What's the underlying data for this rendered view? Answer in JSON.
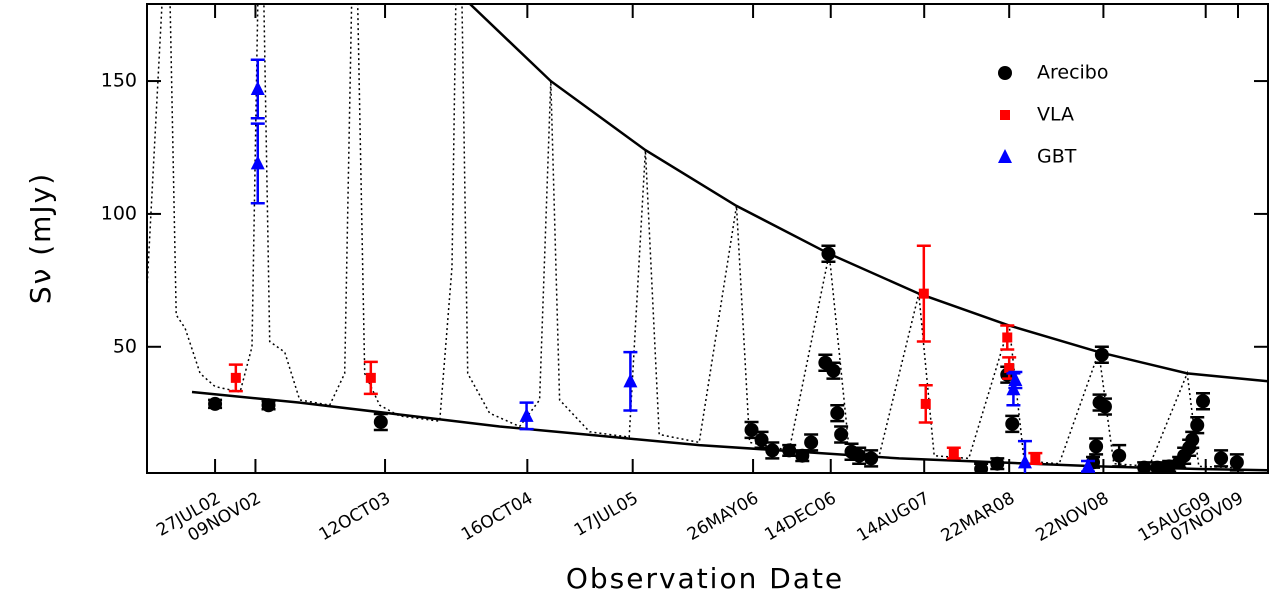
{
  "chart_data": {
    "type": "scatter",
    "xlabel": "Observation Date",
    "ylabel": "Sν (mJy)",
    "xlim": [
      "2002-01-31",
      "2010-01-24"
    ],
    "ylim": [
      2.5,
      179
    ],
    "yticks": [
      50,
      100,
      150
    ],
    "xticks": [
      {
        "value": "2002-07-27",
        "label": "27JUL02"
      },
      {
        "value": "2002-11-09",
        "label": "09NOV02"
      },
      {
        "value": "2003-10-12",
        "label": "12OCT03"
      },
      {
        "value": "2004-10-16",
        "label": "16OCT04"
      },
      {
        "value": "2005-07-17",
        "label": "17JUL05"
      },
      {
        "value": "2006-05-26",
        "label": "26MAY06"
      },
      {
        "value": "2006-12-14",
        "label": "14DEC06"
      },
      {
        "value": "2007-08-14",
        "label": "14AUG07"
      },
      {
        "value": "2008-03-22",
        "label": "22MAR08"
      },
      {
        "value": "2008-11-22",
        "label": "22NOV08"
      },
      {
        "value": "2009-08-15",
        "label": "15AUG09"
      },
      {
        "value": "2009-11-07",
        "label": "07NOV09"
      }
    ],
    "legend": "upper right",
    "series": [
      {
        "name": "Arecibo",
        "color": "#000000",
        "marker": "circle",
        "x": [
          "2002-07-27",
          "2002-12-13",
          "2003-10-01",
          "2006-05-22",
          "2006-06-17",
          "2006-07-15",
          "2006-08-28",
          "2006-10-01",
          "2006-10-24",
          "2006-11-30",
          "2006-12-08",
          "2006-12-21",
          "2006-12-31",
          "2007-01-10",
          "2007-02-06",
          "2007-02-26",
          "2007-03-29",
          "2008-01-09",
          "2008-02-20",
          "2008-03-17",
          "2008-03-30",
          "2008-10-26",
          "2008-11-03",
          "2008-11-12",
          "2008-11-18",
          "2008-11-26",
          "2009-01-02",
          "2009-03-08",
          "2009-04-11",
          "2009-05-12",
          "2009-06-07",
          "2009-06-20",
          "2009-07-03",
          "2009-07-11",
          "2009-07-24",
          "2009-08-08",
          "2009-09-24",
          "2009-11-04"
        ],
        "values": [
          28.5,
          28,
          21.7,
          18.7,
          15,
          11,
          11,
          9,
          14,
          44,
          85,
          41,
          25,
          17,
          10.5,
          9,
          8,
          4,
          6,
          39.5,
          21,
          6.5,
          12.5,
          29,
          47,
          27.5,
          9,
          4.5,
          4.5,
          5,
          6.5,
          9,
          12,
          15,
          20.5,
          29.5,
          8,
          6.5
        ],
        "errors": [
          1.5,
          1.5,
          3,
          3,
          3,
          3,
          2,
          2,
          3,
          3,
          3,
          3,
          3,
          3,
          3,
          3,
          3,
          2,
          2,
          3,
          3,
          2,
          3,
          3,
          3,
          3,
          4,
          2,
          2,
          2,
          2,
          3,
          3,
          3,
          3,
          3,
          3,
          3
        ]
      },
      {
        "name": "VLA",
        "color": "#ff0000",
        "marker": "square",
        "x": [
          "2002-09-19",
          "2003-09-05",
          "2007-08-13",
          "2007-08-18",
          "2007-10-30",
          "2008-03-17",
          "2008-03-22",
          "2008-05-29"
        ],
        "values": [
          38.3,
          38.3,
          70,
          28.5,
          10,
          53.5,
          42,
          8
        ],
        "errors": [
          5,
          6,
          18,
          7,
          2,
          4.5,
          4,
          2
        ]
      },
      {
        "name": "GBT",
        "color": "#0000ff",
        "marker": "triangle",
        "x": [
          "2002-11-15",
          "2002-11-15",
          "2004-10-14",
          "2005-07-11",
          "2008-04-07",
          "2008-04-02",
          "2008-05-02",
          "2008-10-13"
        ],
        "values": [
          147,
          119,
          24,
          37,
          37.5,
          34,
          6.5,
          5
        ],
        "errors": [
          11,
          15,
          5,
          11,
          3,
          6,
          8,
          2
        ]
      }
    ],
    "curves": [
      {
        "style": "solid",
        "x": [
          "2004-05-20",
          "2004-12-16",
          "2005-08-19",
          "2006-04-13",
          "2006-12-10",
          "2007-07-31",
          "2008-03-22",
          "2008-11-10",
          "2009-06-28",
          "2010-01-24"
        ],
        "values": [
          179,
          150,
          124,
          103,
          85,
          70,
          58,
          48,
          40,
          37
        ]
      },
      {
        "style": "solid",
        "x": [
          "2002-05-28",
          "2003-03-04",
          "2003-11-18",
          "2004-08-05",
          "2005-04-22",
          "2006-01-06",
          "2006-09-23",
          "2007-06-10",
          "2008-02-25",
          "2008-11-10",
          "2009-07-28",
          "2010-01-24"
        ],
        "values": [
          33,
          29,
          24.5,
          20,
          16.5,
          13,
          10.5,
          8,
          6.5,
          5,
          4,
          3.5
        ]
      },
      {
        "style": "dotted",
        "x": [
          "2002-01-31",
          "2002-03-11",
          "2002-04-01",
          "2002-04-17",
          "2002-05-10",
          "2002-06-18",
          "2002-07-27",
          "2002-09-30",
          "2002-10-31",
          "2002-11-15",
          "2002-12-01",
          "2002-12-16",
          "2003-01-24",
          "2003-03-04",
          "2003-05-21",
          "2003-06-29",
          "2003-07-17",
          "2003-08-02",
          "2003-08-20",
          "2003-09-28",
          "2003-11-18",
          "2004-03-02",
          "2004-04-03",
          "2004-04-13",
          "2004-04-29",
          "2004-05-14",
          "2004-07-10",
          "2004-09-26",
          "2004-11-17",
          "2004-12-16",
          "2005-01-08",
          "2005-03-27",
          "2005-07-08",
          "2005-08-19",
          "2005-09-24",
          "2006-01-06",
          "2006-04-13",
          "2006-05-17",
          "2006-08-28",
          "2006-12-10",
          "2007-01-31",
          "2007-04-19",
          "2007-07-31",
          "2007-09-09",
          "2007-12-08",
          "2008-03-22",
          "2008-04-30",
          "2008-07-30",
          "2008-11-10",
          "2008-12-19",
          "2009-03-21",
          "2009-06-28",
          "2009-07-28",
          "2009-11-09"
        ],
        "values": [
          72,
          179,
          179,
          62,
          57,
          40,
          35,
          33,
          50,
          179,
          179,
          52,
          48,
          30,
          28,
          40,
          179,
          179,
          40,
          28,
          24,
          22,
          80,
          179,
          179,
          40,
          25,
          20,
          30,
          150,
          30,
          18,
          16,
          124,
          17,
          14,
          103,
          14,
          11,
          85,
          11,
          9,
          70,
          9,
          8,
          58,
          7,
          6,
          48,
          6,
          5,
          40,
          5,
          4.5
        ]
      }
    ]
  }
}
